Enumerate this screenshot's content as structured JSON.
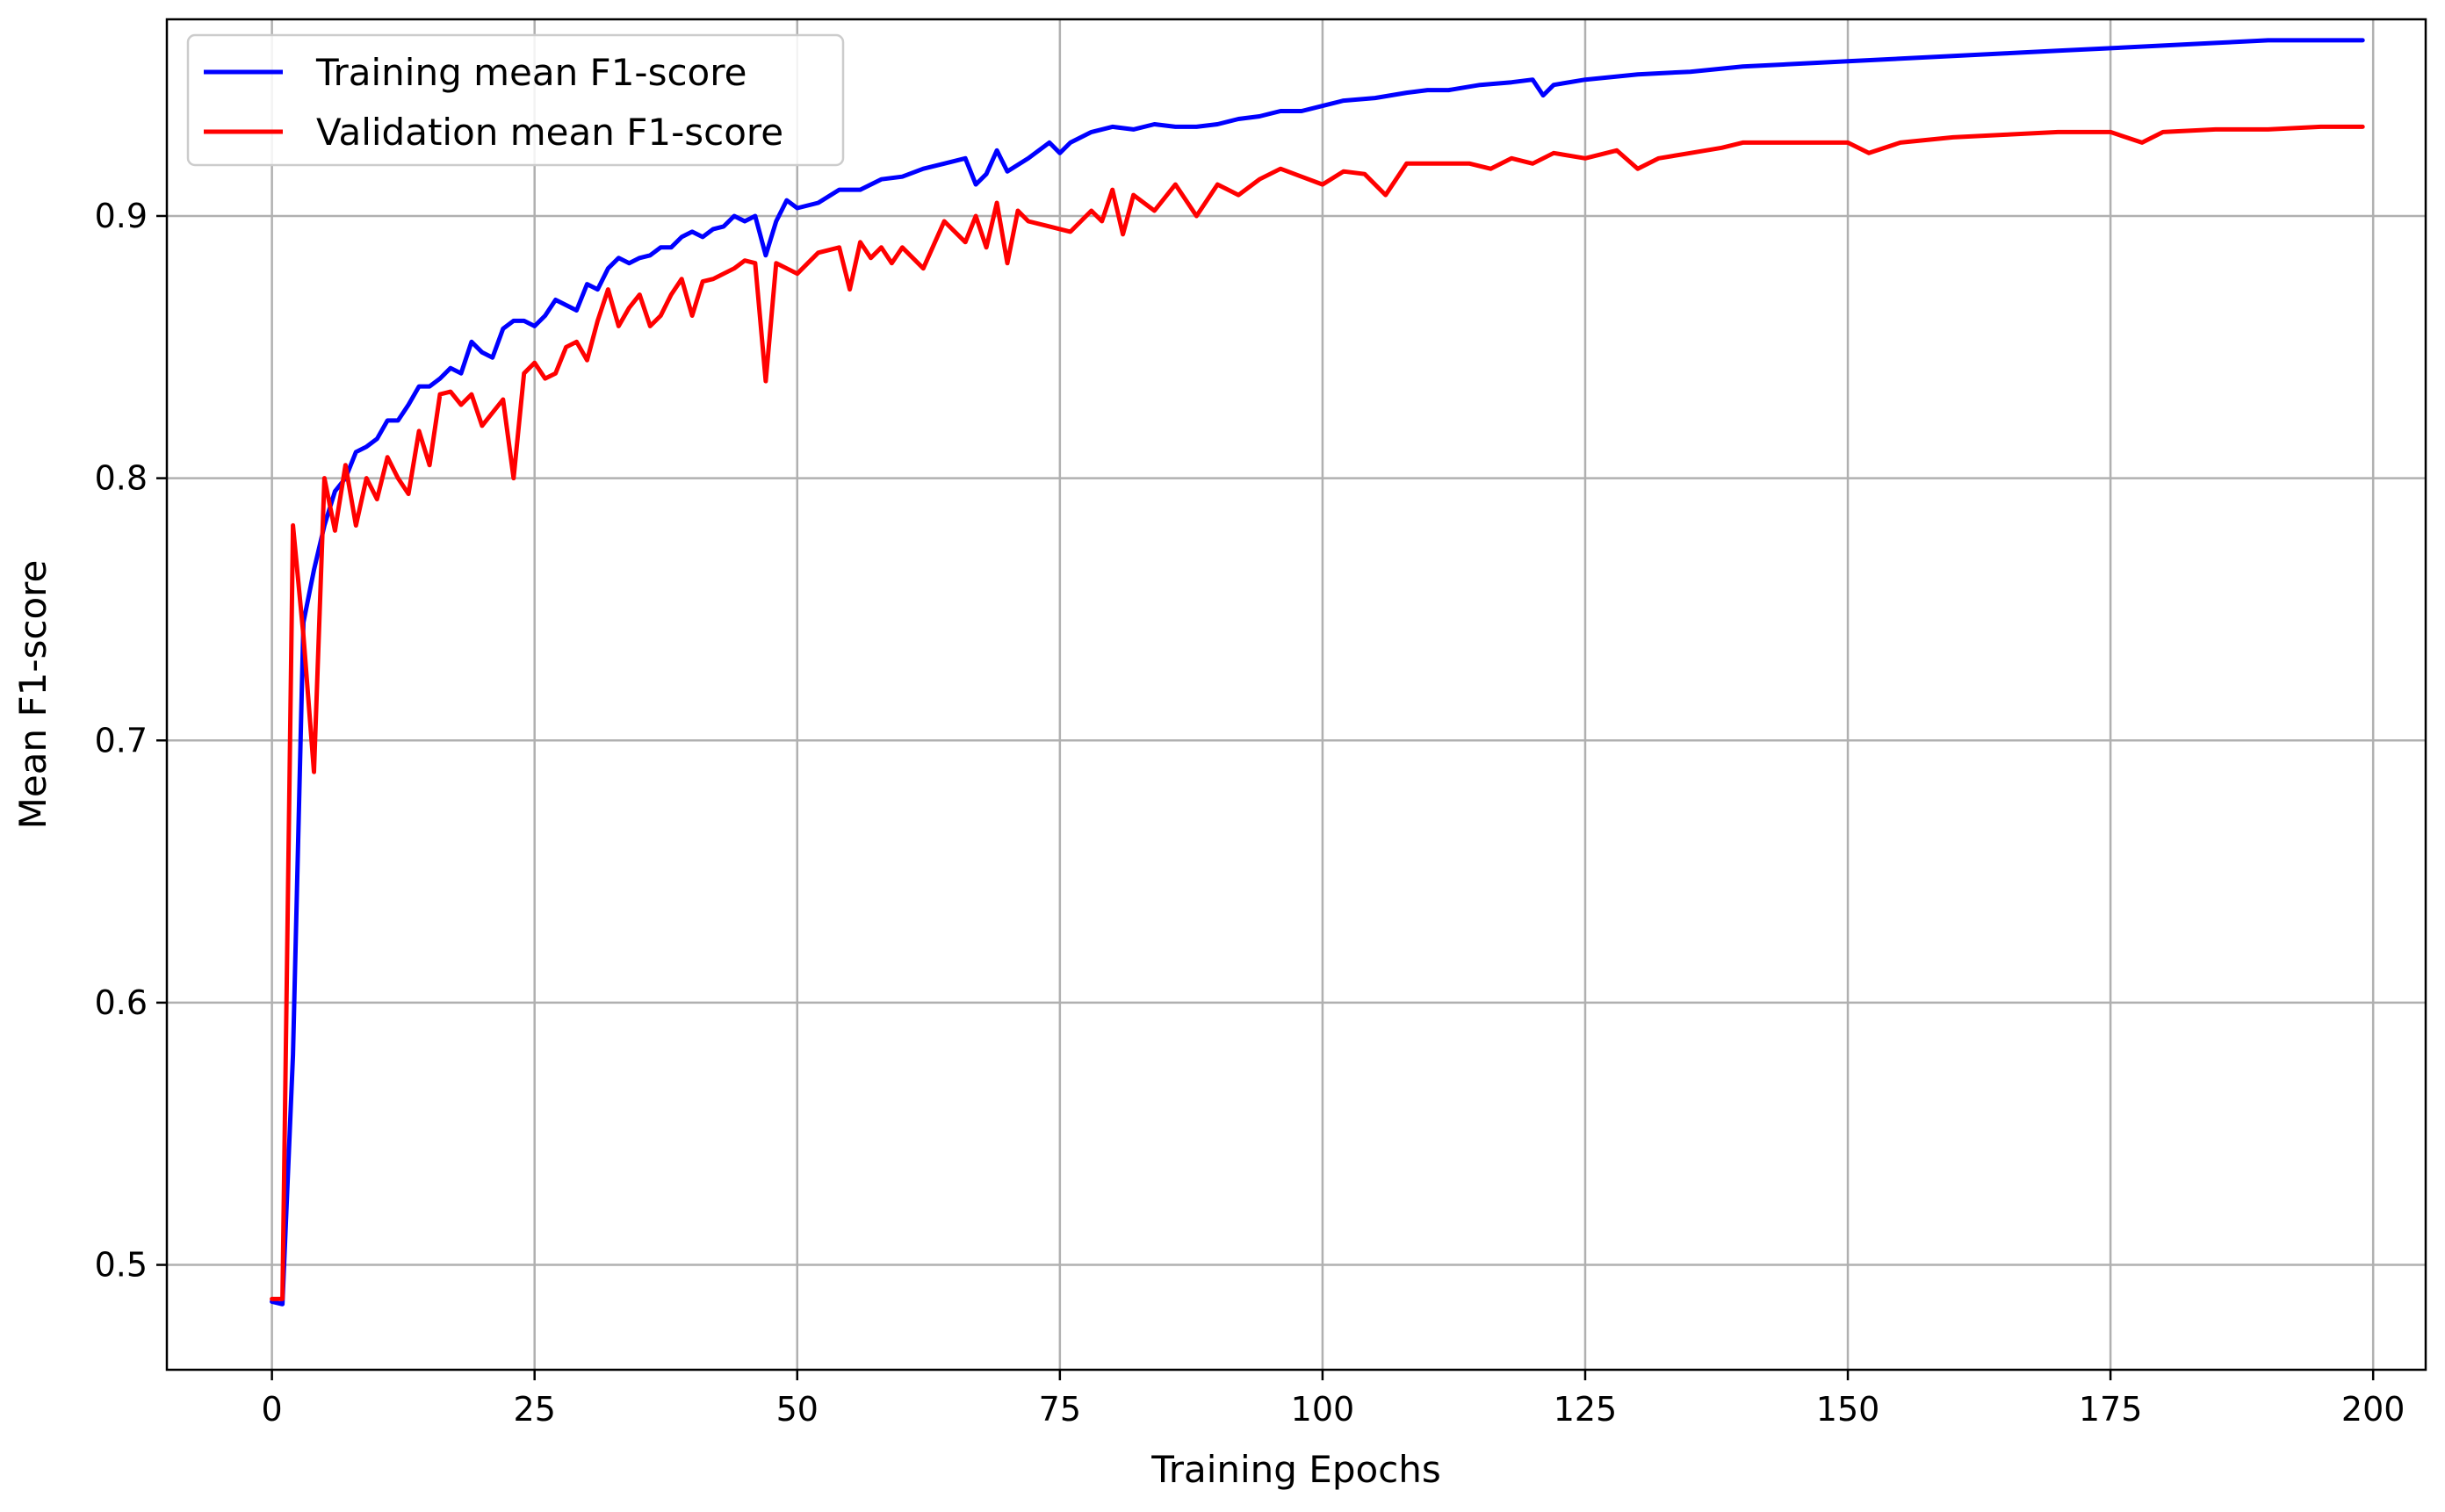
{
  "chart_data": {
    "type": "line",
    "title": "",
    "xlabel": "Training Epochs",
    "ylabel": "Mean F1-score",
    "xlim": [
      -10,
      205
    ],
    "ylim": [
      0.46,
      0.975
    ],
    "xticks": [
      0,
      25,
      50,
      75,
      100,
      125,
      150,
      175,
      200
    ],
    "yticks": [
      0.5,
      0.6,
      0.7,
      0.8,
      0.9
    ],
    "ytick_labels": [
      "0.5",
      "0.6",
      "0.7",
      "0.8",
      "0.9"
    ],
    "grid": true,
    "legend_position": "top-left",
    "series": [
      {
        "name": "Training mean F1-score",
        "color": "#0000ff",
        "x": [
          0,
          1,
          2,
          3,
          4,
          5,
          6,
          7,
          8,
          9,
          10,
          11,
          12,
          13,
          14,
          15,
          16,
          17,
          18,
          19,
          20,
          21,
          22,
          23,
          24,
          25,
          26,
          27,
          28,
          29,
          30,
          31,
          32,
          33,
          34,
          35,
          36,
          37,
          38,
          39,
          40,
          41,
          42,
          43,
          44,
          45,
          46,
          47,
          48,
          49,
          50,
          52,
          54,
          56,
          58,
          60,
          62,
          64,
          66,
          67,
          68,
          69,
          70,
          72,
          74,
          75,
          76,
          78,
          80,
          82,
          84,
          86,
          88,
          90,
          92,
          94,
          96,
          98,
          100,
          102,
          105,
          108,
          110,
          112,
          115,
          118,
          120,
          121,
          122,
          125,
          130,
          135,
          140,
          145,
          150,
          155,
          160,
          165,
          170,
          175,
          180,
          185,
          190,
          195,
          199
        ],
        "y": [
          0.486,
          0.485,
          0.58,
          0.745,
          0.765,
          0.782,
          0.795,
          0.8,
          0.81,
          0.812,
          0.815,
          0.822,
          0.822,
          0.828,
          0.835,
          0.835,
          0.838,
          0.842,
          0.84,
          0.852,
          0.848,
          0.846,
          0.857,
          0.86,
          0.86,
          0.858,
          0.862,
          0.868,
          0.866,
          0.864,
          0.874,
          0.872,
          0.88,
          0.884,
          0.882,
          0.884,
          0.885,
          0.888,
          0.888,
          0.892,
          0.894,
          0.892,
          0.895,
          0.896,
          0.9,
          0.898,
          0.9,
          0.885,
          0.898,
          0.906,
          0.903,
          0.905,
          0.91,
          0.91,
          0.914,
          0.915,
          0.918,
          0.92,
          0.922,
          0.912,
          0.916,
          0.925,
          0.917,
          0.922,
          0.928,
          0.924,
          0.928,
          0.932,
          0.934,
          0.933,
          0.935,
          0.934,
          0.934,
          0.935,
          0.937,
          0.938,
          0.94,
          0.94,
          0.942,
          0.944,
          0.945,
          0.947,
          0.948,
          0.948,
          0.95,
          0.951,
          0.952,
          0.946,
          0.95,
          0.952,
          0.954,
          0.955,
          0.957,
          0.958,
          0.959,
          0.96,
          0.961,
          0.962,
          0.963,
          0.964,
          0.965,
          0.966,
          0.967,
          0.967,
          0.967
        ]
      },
      {
        "name": "Validation mean F1-score",
        "color": "#ff0000",
        "x": [
          0,
          1,
          2,
          3,
          4,
          5,
          6,
          7,
          8,
          9,
          10,
          11,
          12,
          13,
          14,
          15,
          16,
          17,
          18,
          19,
          20,
          21,
          22,
          23,
          24,
          25,
          26,
          27,
          28,
          29,
          30,
          31,
          32,
          33,
          34,
          35,
          36,
          37,
          38,
          39,
          40,
          41,
          42,
          43,
          44,
          45,
          46,
          47,
          48,
          49,
          50,
          52,
          54,
          55,
          56,
          57,
          58,
          59,
          60,
          62,
          64,
          66,
          67,
          68,
          69,
          70,
          71,
          72,
          74,
          76,
          78,
          79,
          80,
          81,
          82,
          84,
          86,
          88,
          90,
          92,
          94,
          96,
          98,
          100,
          102,
          104,
          106,
          108,
          110,
          112,
          114,
          116,
          118,
          120,
          122,
          125,
          128,
          130,
          132,
          135,
          138,
          140,
          145,
          150,
          152,
          155,
          160,
          165,
          170,
          175,
          178,
          180,
          185,
          190,
          195,
          199
        ],
        "y": [
          0.487,
          0.487,
          0.782,
          0.74,
          0.688,
          0.8,
          0.78,
          0.805,
          0.782,
          0.8,
          0.792,
          0.808,
          0.8,
          0.794,
          0.818,
          0.805,
          0.832,
          0.833,
          0.828,
          0.832,
          0.82,
          0.825,
          0.83,
          0.8,
          0.84,
          0.844,
          0.838,
          0.84,
          0.85,
          0.852,
          0.845,
          0.86,
          0.872,
          0.858,
          0.865,
          0.87,
          0.858,
          0.862,
          0.87,
          0.876,
          0.862,
          0.875,
          0.876,
          0.878,
          0.88,
          0.883,
          0.882,
          0.837,
          0.882,
          0.88,
          0.878,
          0.886,
          0.888,
          0.872,
          0.89,
          0.884,
          0.888,
          0.882,
          0.888,
          0.88,
          0.898,
          0.89,
          0.9,
          0.888,
          0.905,
          0.882,
          0.902,
          0.898,
          0.896,
          0.894,
          0.902,
          0.898,
          0.91,
          0.893,
          0.908,
          0.902,
          0.912,
          0.9,
          0.912,
          0.908,
          0.914,
          0.918,
          0.915,
          0.912,
          0.917,
          0.916,
          0.908,
          0.92,
          0.92,
          0.92,
          0.92,
          0.918,
          0.922,
          0.92,
          0.924,
          0.922,
          0.925,
          0.918,
          0.922,
          0.924,
          0.926,
          0.928,
          0.928,
          0.928,
          0.924,
          0.928,
          0.93,
          0.931,
          0.932,
          0.932,
          0.928,
          0.932,
          0.933,
          0.933,
          0.934,
          0.934
        ]
      }
    ]
  }
}
